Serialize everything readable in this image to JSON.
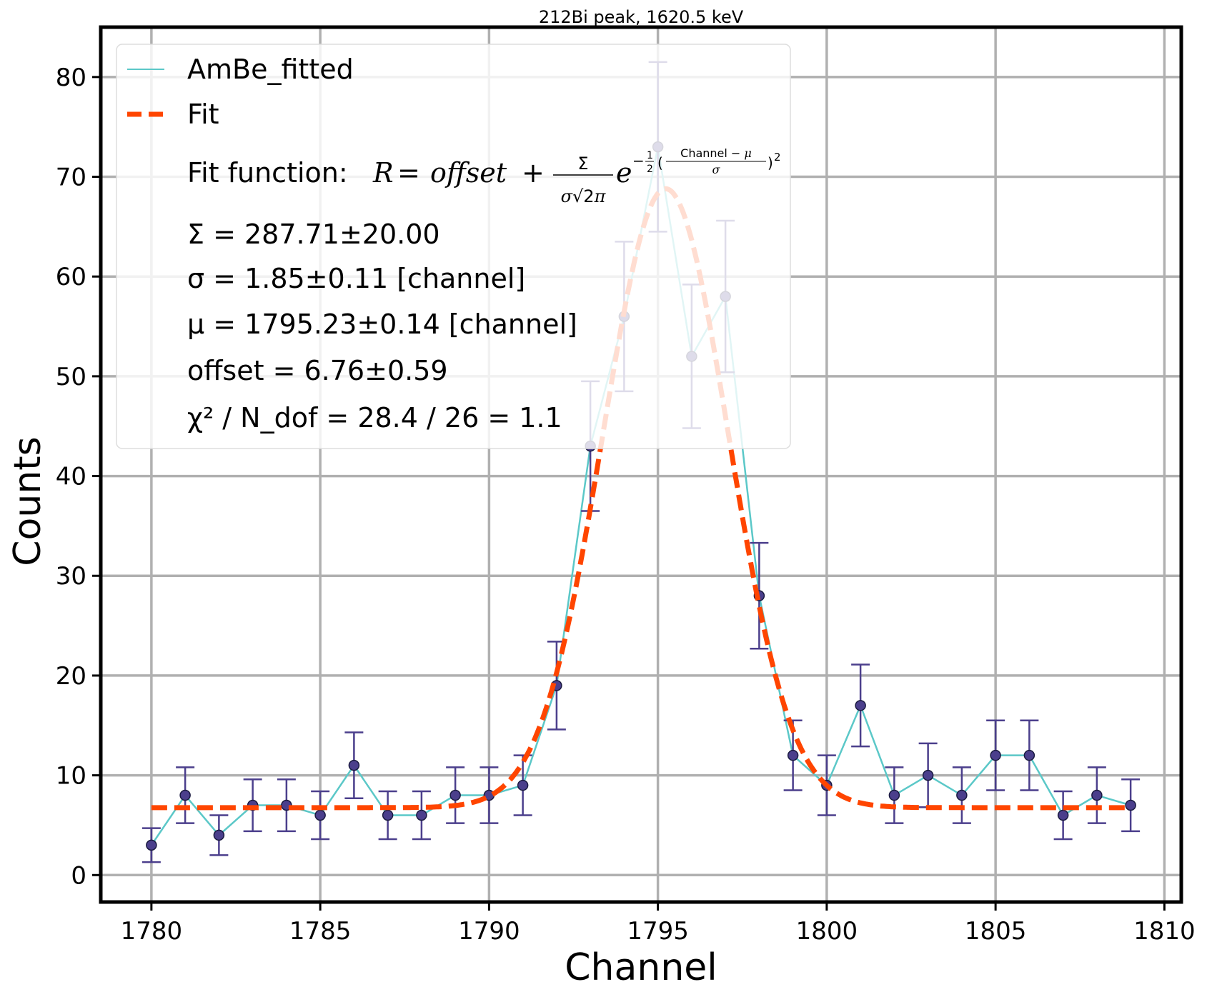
{
  "chart_data": {
    "type": "scatter",
    "title": "212Bi peak, 1620.5 keV",
    "xlabel": "Channel",
    "ylabel": "Counts",
    "xlim": [
      1778.5,
      1810.5
    ],
    "ylim": [
      -2.7,
      85
    ],
    "x_ticks": [
      1780,
      1785,
      1790,
      1795,
      1800,
      1805,
      1810
    ],
    "y_ticks": [
      0,
      10,
      20,
      30,
      40,
      50,
      60,
      70,
      80
    ],
    "grid": true,
    "legend_position": "top-left",
    "series": [
      {
        "name": "AmBe_fitted",
        "kind": "line+errorbar",
        "color": "#5bc8c8",
        "marker_color": "#4b3f8c",
        "x": [
          1780,
          1781,
          1782,
          1783,
          1784,
          1785,
          1786,
          1787,
          1788,
          1789,
          1790,
          1791,
          1792,
          1793,
          1794,
          1795,
          1796,
          1797,
          1798,
          1799,
          1800,
          1801,
          1802,
          1803,
          1804,
          1805,
          1806,
          1807,
          1808,
          1809
        ],
        "y": [
          3,
          8,
          4,
          7,
          7,
          6,
          11,
          6,
          6,
          8,
          8,
          9,
          19,
          43,
          56,
          73,
          52,
          58,
          28,
          12,
          9,
          17,
          8,
          10,
          8,
          12,
          12,
          6,
          8,
          7
        ],
        "yerr_low": [
          1.7,
          2.8,
          2.0,
          2.6,
          2.6,
          2.4,
          3.3,
          2.4,
          2.4,
          2.8,
          2.8,
          3.0,
          4.4,
          6.5,
          7.5,
          8.5,
          7.2,
          7.6,
          5.3,
          3.5,
          3.0,
          4.1,
          2.8,
          3.2,
          2.8,
          3.5,
          3.5,
          2.4,
          2.8,
          2.6
        ],
        "yerr_high": [
          1.7,
          2.8,
          2.0,
          2.6,
          2.6,
          2.4,
          3.3,
          2.4,
          2.4,
          2.8,
          2.8,
          3.0,
          4.4,
          6.5,
          7.5,
          8.5,
          7.2,
          7.6,
          5.3,
          3.5,
          3.0,
          4.1,
          2.8,
          3.2,
          2.8,
          3.5,
          3.5,
          2.4,
          2.8,
          2.6
        ]
      },
      {
        "name": "Fit",
        "kind": "dashed-line",
        "color": "#ff4500",
        "function": "gaussian_plus_offset",
        "params": {
          "Sigma": 287.71,
          "sigma": 1.85,
          "mu": 1795.23,
          "offset": 6.76
        },
        "x_range": [
          1780,
          1809
        ]
      }
    ],
    "legend": {
      "entries": [
        "AmBe_fitted",
        "Fit"
      ],
      "fit_function_label": "Fit function: ",
      "lines": [
        "Σ = 287.71±20.00",
        "σ = 1.85±0.11 [channel]",
        "μ = 1795.23±0.14 [channel]",
        "offset = 6.76±0.59",
        "χ² / N_dof = 28.4 / 26 = 1.1"
      ]
    }
  }
}
